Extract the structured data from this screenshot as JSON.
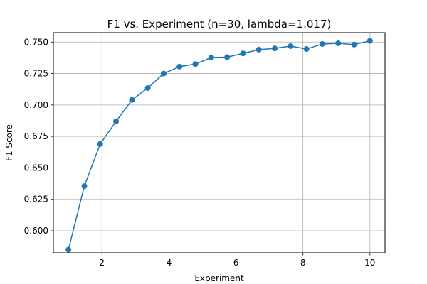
{
  "chart_data": {
    "type": "line",
    "title": "F1 vs. Experiment (n=30, lambda=1.017)",
    "xlabel": "Experiment",
    "ylabel": "F1 Score",
    "xlim": [
      0.55,
      10.45
    ],
    "ylim": [
      0.5825,
      0.7575
    ],
    "xticks": [
      2,
      4,
      6,
      8,
      10
    ],
    "xtick_labels": [
      "2",
      "4",
      "6",
      "8",
      "10"
    ],
    "yticks": [
      0.6,
      0.625,
      0.65,
      0.675,
      0.7,
      0.725,
      0.75
    ],
    "ytick_labels": [
      "0.600",
      "0.625",
      "0.650",
      "0.675",
      "0.700",
      "0.725",
      "0.750"
    ],
    "grid": true,
    "series": [
      {
        "name": "F1",
        "color": "#1f77b4",
        "marker": "circle",
        "x": [
          1.0,
          1.474,
          1.947,
          2.421,
          2.895,
          3.368,
          3.842,
          4.316,
          4.789,
          5.263,
          5.737,
          6.211,
          6.684,
          7.158,
          7.632,
          8.105,
          8.579,
          9.053,
          9.526,
          10.0
        ],
        "y": [
          0.585,
          0.6355,
          0.669,
          0.687,
          0.704,
          0.7135,
          0.725,
          0.7305,
          0.7325,
          0.7378,
          0.738,
          0.741,
          0.744,
          0.745,
          0.7468,
          0.7445,
          0.7485,
          0.749,
          0.748,
          0.751
        ]
      }
    ]
  }
}
